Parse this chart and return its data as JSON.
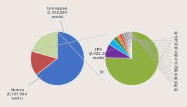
{
  "left_pie": {
    "values": [
      6337064,
      1458884,
      2022368
    ],
    "colors": [
      "#4472c4",
      "#c0504d",
      "#c5d6a0"
    ],
    "startangle": 90,
    "labels_text": [
      "Human\n(6,337,064\nreads)",
      "Unmapped\n(1,458,884\nreads)",
      "HPV\n(2,022,368\nreads)"
    ]
  },
  "right_pie": {
    "labels": [
      "40",
      "16",
      "70",
      "74",
      "56",
      "30",
      "45",
      "71",
      "55",
      "59",
      "90",
      "35",
      "66",
      "53",
      "81",
      "84"
    ],
    "values": [
      74,
      8,
      4,
      2.5,
      1.8,
      1.2,
      1.0,
      0.8,
      0.8,
      0.7,
      0.6,
      0.6,
      0.5,
      0.5,
      0.4,
      0.4
    ],
    "colors": [
      "#8db040",
      "#7030a0",
      "#00b0f0",
      "#538135",
      "#ed7d31",
      "#ff0000",
      "#7f7f7f",
      "#7f7f7f",
      "#7f7f7f",
      "#7f7f7f",
      "#7f7f7f",
      "#7f7f7f",
      "#7f7f7f",
      "#7f7f7f",
      "#7f7f7f",
      "#7f7f7f"
    ],
    "startangle": 90
  },
  "background_color": "#ede8e3",
  "connection_color": "#c0c0c0"
}
